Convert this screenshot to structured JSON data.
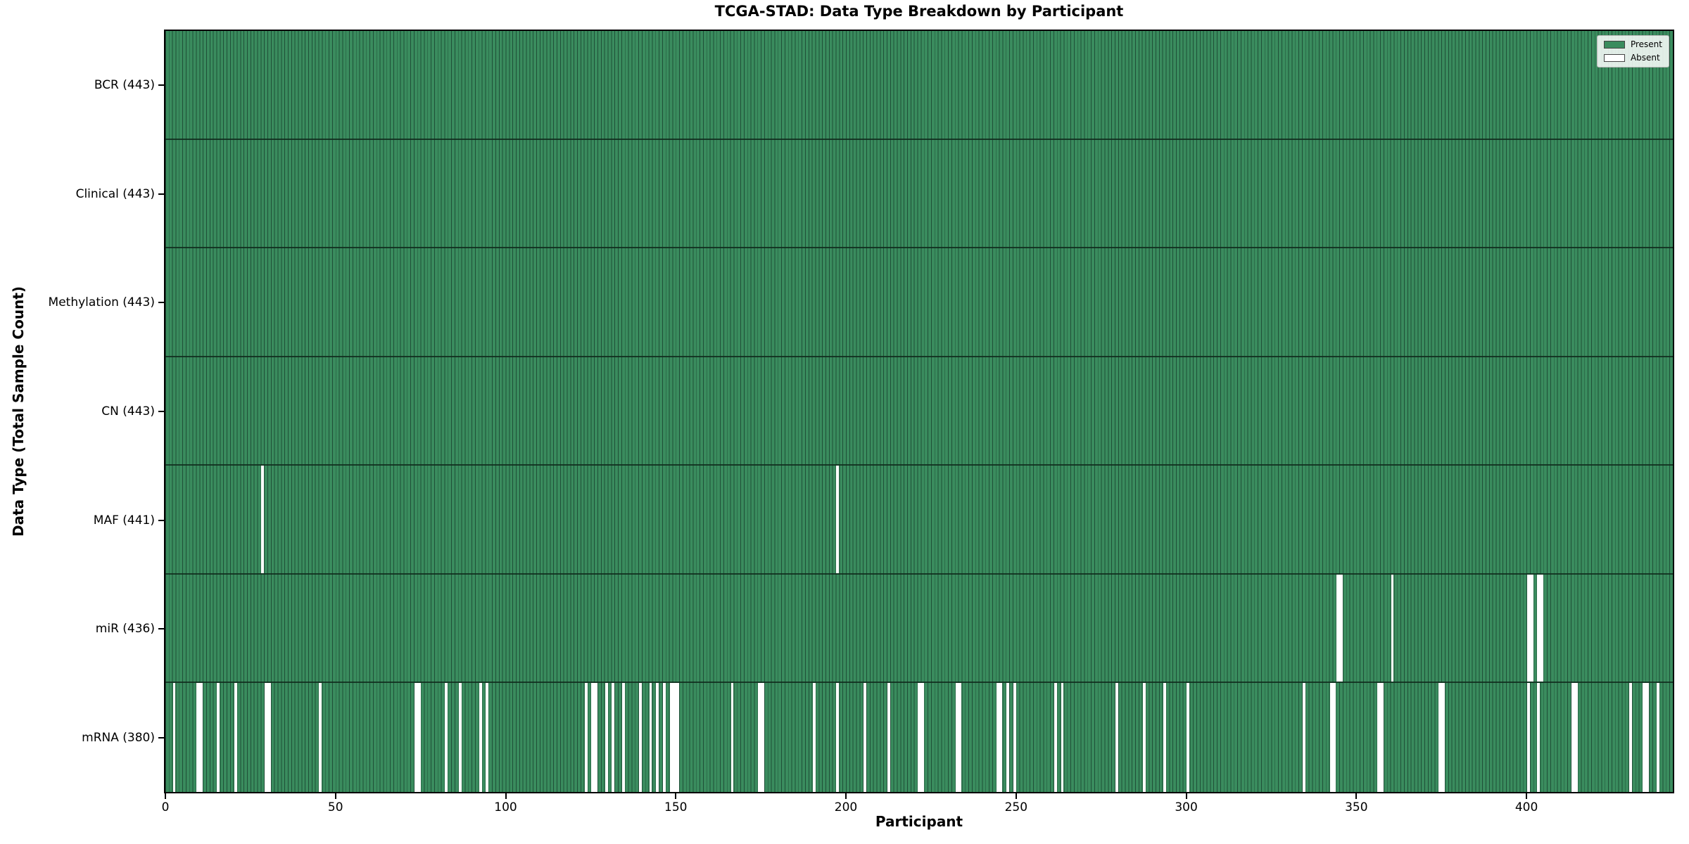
{
  "title": "TCGA-STAD: Data Type Breakdown by Participant",
  "legend": {
    "present_label": "Present",
    "absent_label": "Absent"
  },
  "colors": {
    "present": "#3a8c5e",
    "absent": "#ffffff",
    "cell_edge": "#1f4f37"
  },
  "chart_data": {
    "type": "heatmap",
    "title": "TCGA-STAD: Data Type Breakdown by Participant",
    "xlabel": "Participant",
    "ylabel": "Data Type (Total Sample Count)",
    "x_ticks": [
      0,
      50,
      100,
      150,
      200,
      250,
      300,
      350,
      400
    ],
    "x_range": [
      0,
      443
    ],
    "n_participants": 443,
    "grid": false,
    "legend_entries": [
      "Present",
      "Absent"
    ],
    "legend_position": "upper right",
    "value_encoding": {
      "present": 1,
      "absent": 0
    },
    "rows": [
      {
        "label": "BCR (443)",
        "data_type": "BCR",
        "total_samples": 443,
        "absent_participants": []
      },
      {
        "label": "Clinical (443)",
        "data_type": "Clinical",
        "total_samples": 443,
        "absent_participants": []
      },
      {
        "label": "Methylation (443)",
        "data_type": "Methylation",
        "total_samples": 443,
        "absent_participants": []
      },
      {
        "label": "CN (443)",
        "data_type": "CN",
        "total_samples": 443,
        "absent_participants": []
      },
      {
        "label": "MAF (441)",
        "data_type": "MAF",
        "total_samples": 441,
        "absent_participants": [
          28,
          197
        ]
      },
      {
        "label": "miR (436)",
        "data_type": "miR",
        "total_samples": 436,
        "absent_participants": [
          344,
          345,
          360,
          400,
          401,
          403,
          404
        ]
      },
      {
        "label": "mRNA (380)",
        "data_type": "mRNA",
        "total_samples": 380,
        "absent_participants": [
          2,
          9,
          10,
          15,
          20,
          29,
          30,
          45,
          73,
          74,
          82,
          86,
          92,
          94,
          123,
          125,
          126,
          129,
          131,
          134,
          139,
          142,
          144,
          146,
          148,
          149,
          150,
          166,
          174,
          175,
          190,
          197,
          205,
          212,
          221,
          222,
          232,
          233,
          244,
          245,
          247,
          249,
          261,
          263,
          279,
          287,
          293,
          300,
          334,
          342,
          343,
          356,
          357,
          374,
          375,
          400,
          403,
          413,
          414,
          430,
          434,
          435,
          438
        ]
      }
    ]
  }
}
